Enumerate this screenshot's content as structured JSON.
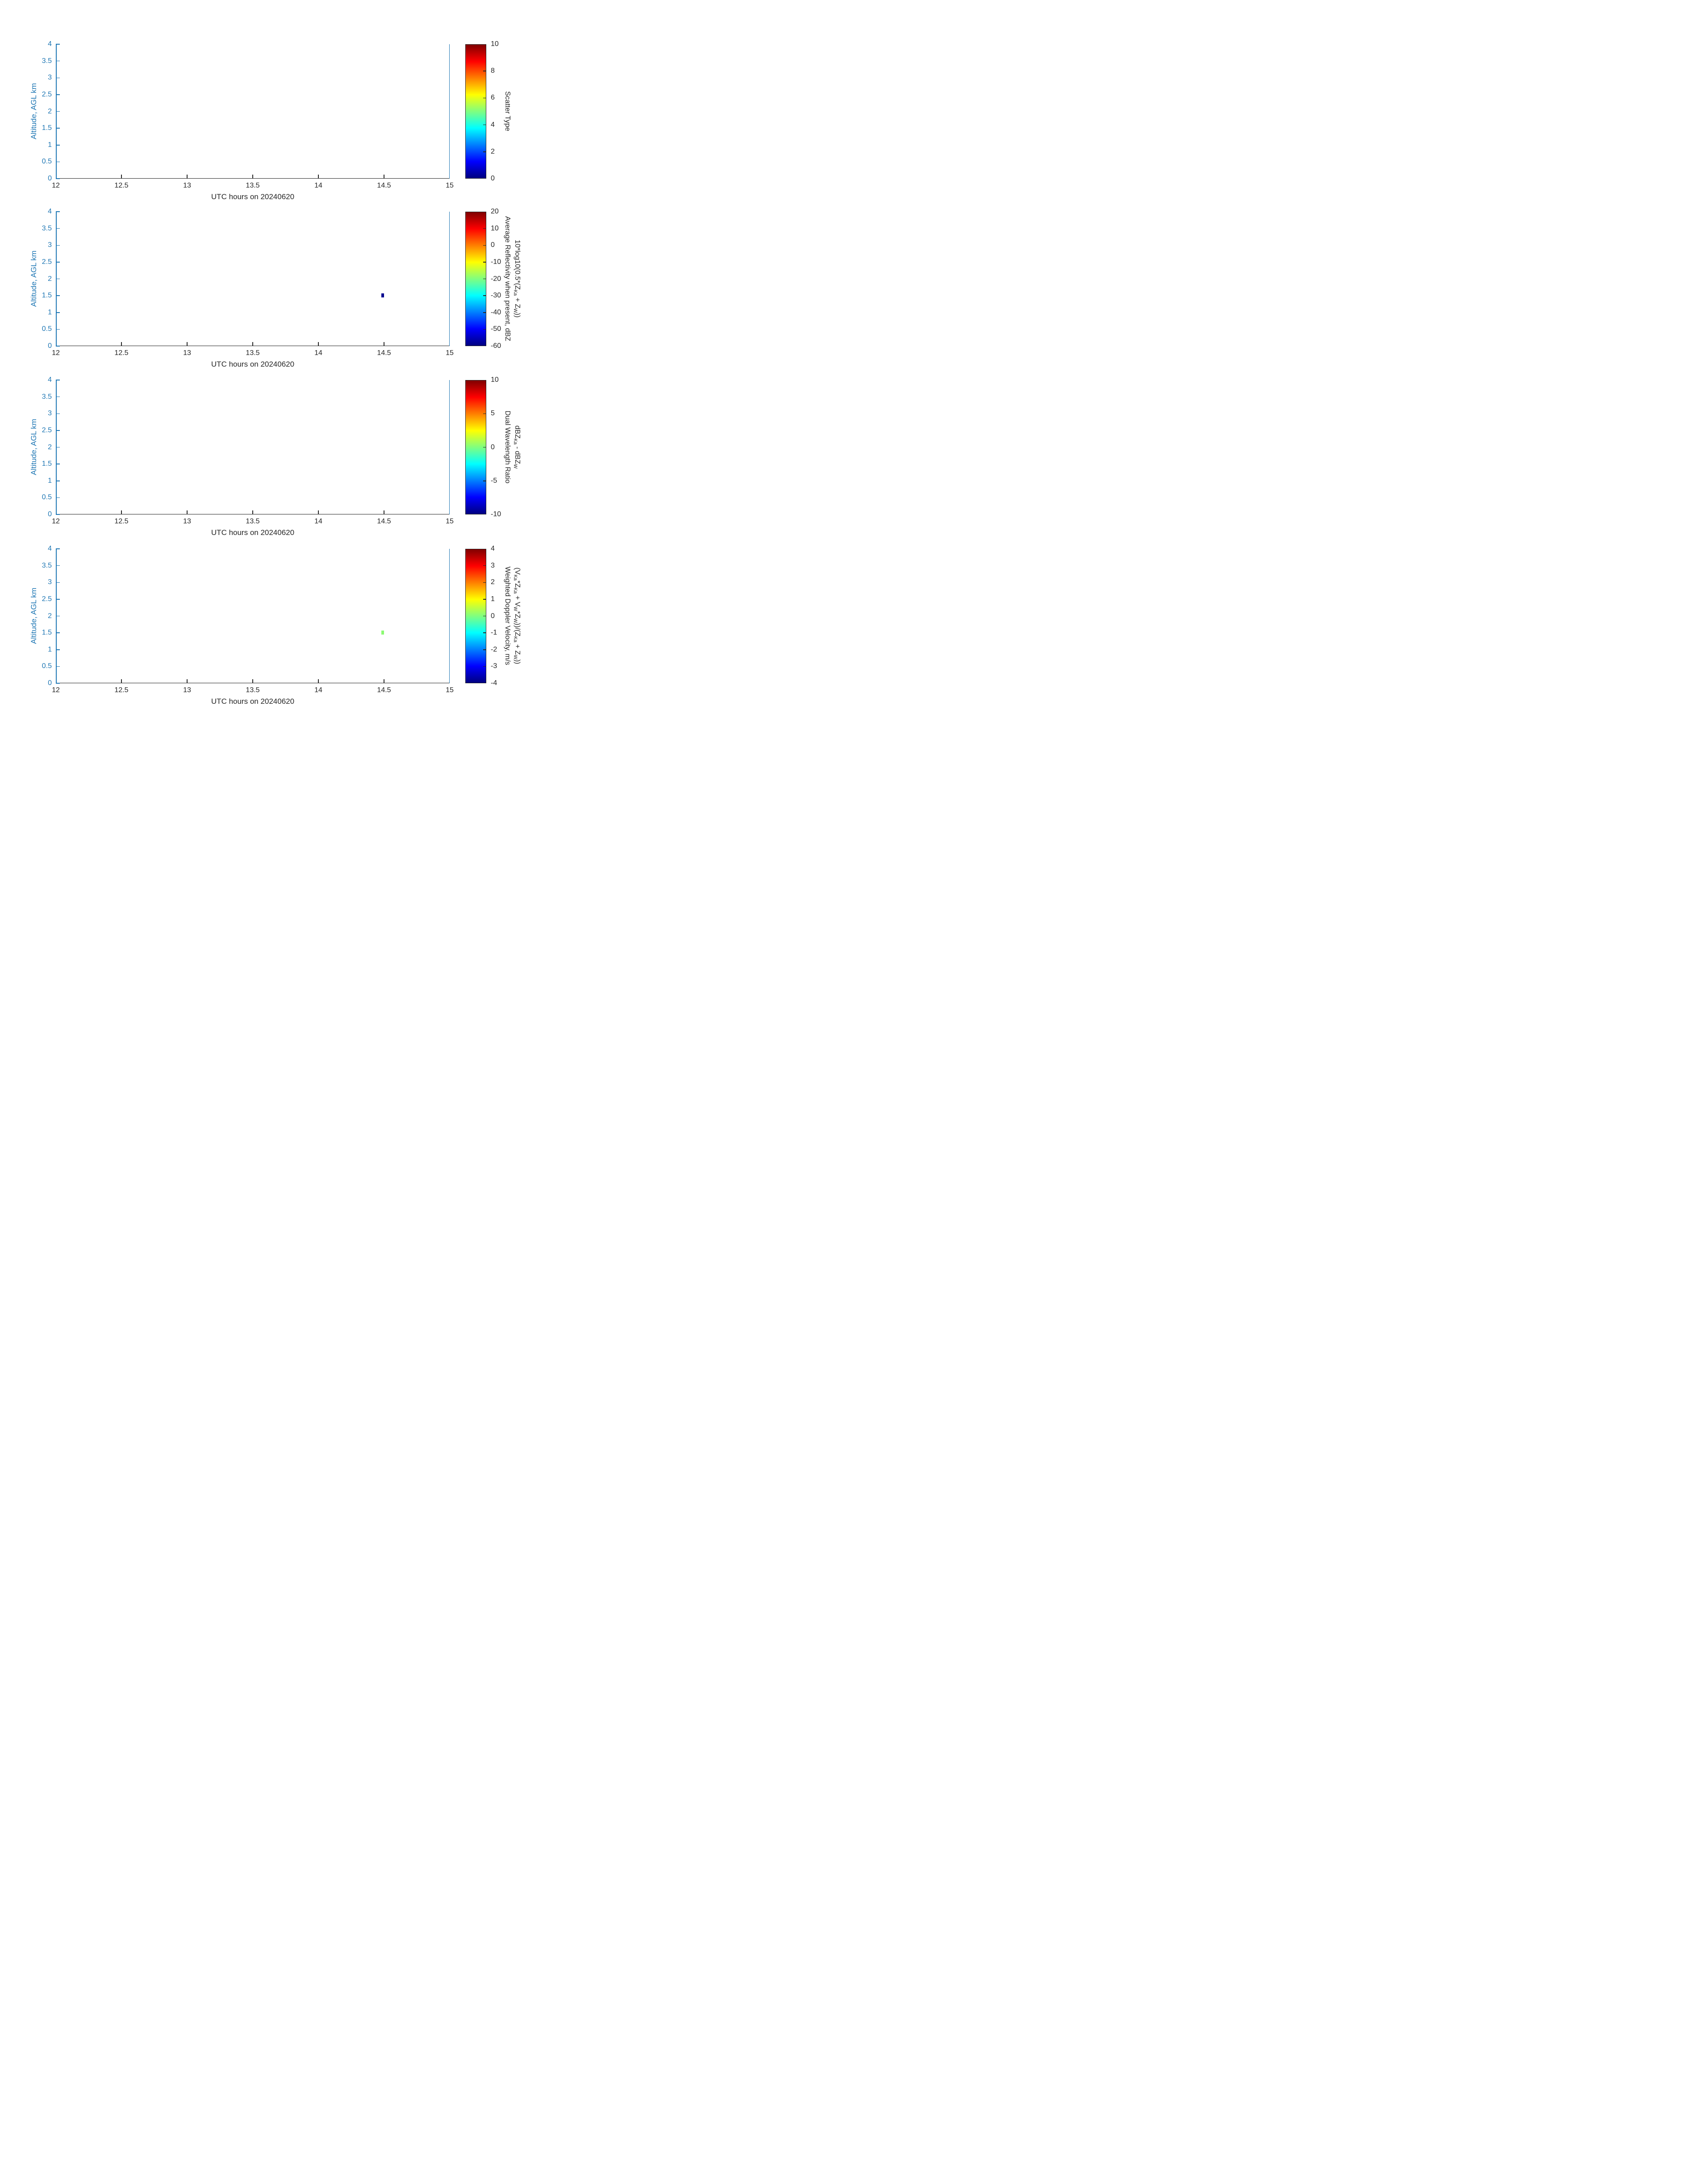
{
  "figure": {
    "background": "#ffffff",
    "y_axis_color": "#1f77b4",
    "x_axis_color": "#262626",
    "colormap": "jet",
    "n_panels": 4
  },
  "axes": {
    "ylabel": "Altitude, AGL km",
    "xlabel": "UTC hours on 20240620",
    "x_ticks": [
      "12",
      "12.5",
      "13",
      "13.5",
      "14",
      "14.5",
      "15"
    ],
    "y_ticks": [
      "0",
      "0.5",
      "1",
      "1.5",
      "2",
      "2.5",
      "3",
      "3.5",
      "4"
    ],
    "x_range": [
      12,
      15
    ],
    "y_range": [
      0,
      4
    ]
  },
  "chart_data": [
    {
      "type": "heatmap",
      "panel": 1,
      "title": "",
      "xlabel": "UTC hours on 20240620",
      "ylabel": "Altitude, AGL km",
      "xlim": [
        12,
        15
      ],
      "ylim": [
        0,
        4
      ],
      "grid": false,
      "colorbar": {
        "label_lines": [
          "Scatter Type"
        ],
        "tick_labels": [
          "0",
          "2",
          "4",
          "6",
          "8",
          "10"
        ],
        "range": [
          0,
          10
        ],
        "colormap": "jet",
        "position": "right"
      },
      "points": []
    },
    {
      "type": "heatmap",
      "panel": 2,
      "title": "",
      "xlabel": "UTC hours on 20240620",
      "ylabel": "Altitude, AGL km",
      "xlim": [
        12,
        15
      ],
      "ylim": [
        0,
        4
      ],
      "grid": false,
      "colorbar": {
        "label_lines": [
          "Average Reflectivity when present, dBZ",
          "10*log10(0.5*(Z_{Ka} + Z_{W}))"
        ],
        "tick_labels": [
          "-60",
          "-50",
          "-40",
          "-30",
          "-20",
          "-10",
          "0",
          "10",
          "20"
        ],
        "range": [
          -60,
          20
        ],
        "colormap": "jet",
        "position": "right"
      },
      "points": [
        {
          "name": "reflectivity-cell",
          "x_utc_hours": [
            14.48,
            14.5
          ],
          "altitude_km": [
            1.45,
            1.57
          ],
          "value_est_dBZ": -59,
          "color": "#00008f"
        }
      ]
    },
    {
      "type": "heatmap",
      "panel": 3,
      "title": "",
      "xlabel": "UTC hours on 20240620",
      "ylabel": "Altitude, AGL km",
      "xlim": [
        12,
        15
      ],
      "ylim": [
        0,
        4
      ],
      "grid": false,
      "colorbar": {
        "label_lines": [
          "Dual Wavelength Ratio",
          "dBZ_{Ka} - dBZ_{W}"
        ],
        "tick_labels": [
          "-10",
          "-5",
          "0",
          "5",
          "10"
        ],
        "range": [
          -10,
          10
        ],
        "colormap": "jet",
        "position": "right"
      },
      "points": []
    },
    {
      "type": "heatmap",
      "panel": 4,
      "title": "",
      "xlabel": "UTC hours on 20240620",
      "ylabel": "Altitude, AGL km",
      "xlim": [
        12,
        15
      ],
      "ylim": [
        0,
        4
      ],
      "grid": false,
      "colorbar": {
        "label_lines": [
          "Weighted Doppler Velocity, m/s",
          "(V_{Ka}*Z_{Ka} + V_{W}*Z_{W}))/(Z_{Ka} + Z_{W}))"
        ],
        "tick_labels": [
          "-4",
          "-3",
          "-2",
          "-1",
          "0",
          "1",
          "2",
          "3",
          "4"
        ],
        "range": [
          -4,
          4
        ],
        "colormap": "jet",
        "position": "right"
      },
      "points": [
        {
          "name": "velocity-cell",
          "x_utc_hours": [
            14.48,
            14.5
          ],
          "altitude_km": [
            1.45,
            1.57
          ],
          "value_est_m_per_s": 0.1,
          "color": "#8cfa73"
        }
      ]
    }
  ]
}
